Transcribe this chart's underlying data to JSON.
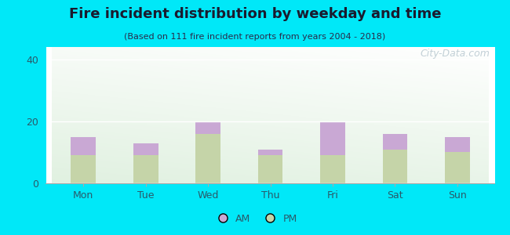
{
  "title": "Fire incident distribution by weekday and time",
  "subtitle": "(Based on 111 fire incident reports from years 2004 - 2018)",
  "categories": [
    "Mon",
    "Tue",
    "Wed",
    "Thu",
    "Fri",
    "Sat",
    "Sun"
  ],
  "pm_values": [
    9,
    9,
    16,
    9,
    9,
    11,
    10
  ],
  "am_values": [
    6,
    4,
    4,
    2,
    11,
    5,
    5
  ],
  "am_color": "#c9a8d4",
  "pm_color": "#c5d4a8",
  "background_outer": "#00e8f8",
  "ylim": [
    0,
    44
  ],
  "yticks": [
    0,
    20,
    40
  ],
  "bar_width": 0.4,
  "title_fontsize": 13,
  "subtitle_fontsize": 8,
  "legend_fontsize": 9,
  "tick_fontsize": 9,
  "watermark_text": "City-Data.com",
  "watermark_color": "#b8c8d0",
  "watermark_fontsize": 9,
  "title_color": "#1a1a2e",
  "subtitle_color": "#2a2a4a",
  "tick_color": "#2a5a6a"
}
